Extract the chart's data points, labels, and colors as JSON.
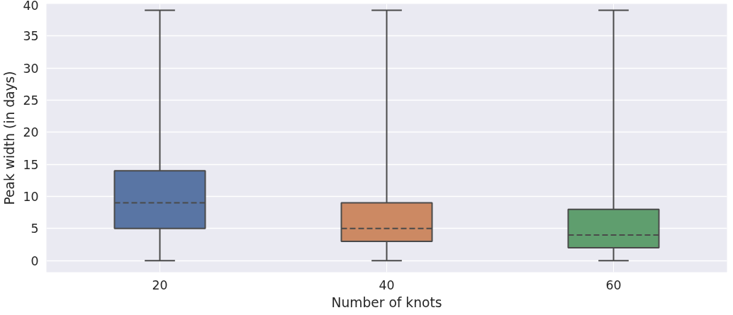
{
  "chart_data": {
    "type": "box",
    "xlabel": "Number of knots",
    "ylabel": "Peak width (in days)",
    "categories": [
      "20",
      "40",
      "60"
    ],
    "colors": [
      "#5975a4",
      "#cc8963",
      "#5f9e6e"
    ],
    "boxes": [
      {
        "low": 0,
        "q1": 5,
        "median": 9,
        "q3": 14,
        "high": 39
      },
      {
        "low": 0,
        "q1": 3,
        "median": 5,
        "q3": 9,
        "high": 39
      },
      {
        "low": 0,
        "q1": 2,
        "median": 4,
        "q3": 8,
        "high": 39
      }
    ],
    "ylim": [
      -1.8,
      40
    ],
    "yticks": [
      0,
      5,
      10,
      15,
      20,
      25,
      30,
      35,
      40
    ],
    "grid": true
  }
}
